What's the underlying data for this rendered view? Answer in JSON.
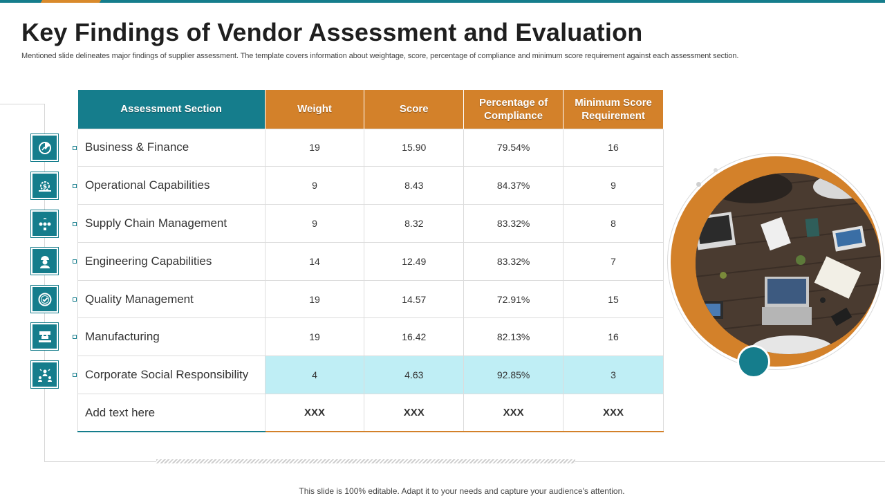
{
  "slide": {
    "title": "Key Findings of Vendor Assessment and Evaluation",
    "subtitle": "Mentioned slide delineates major findings of supplier assessment. The template covers information about weightage, score, percentage of compliance and minimum score requirement against each assessment section.",
    "footer": "This slide is 100% editable. Adapt it to your needs and capture your audience's attention."
  },
  "colors": {
    "teal": "#157d8c",
    "orange": "#d3812a",
    "highlight": "#bfeef5"
  },
  "table": {
    "headers": [
      "Assessment Section",
      "Weight",
      "Score",
      "Percentage of Compliance",
      "Minimum Score Requirement"
    ],
    "rows": [
      {
        "icon": "finance-chart-icon",
        "section": "Business & Finance",
        "weight": "19",
        "score": "15.90",
        "compliance": "79.54%",
        "minimum": "16"
      },
      {
        "icon": "gears-dollar-icon",
        "section": "Operational Capabilities",
        "weight": "9",
        "score": "8.43",
        "compliance": "84.37%",
        "minimum": "9"
      },
      {
        "icon": "supply-chain-icon",
        "section": "Supply Chain Management",
        "weight": "9",
        "score": "8.32",
        "compliance": "83.32%",
        "minimum": "8"
      },
      {
        "icon": "engineer-icon",
        "section": "Engineering Capabilities",
        "weight": "14",
        "score": "12.49",
        "compliance": "83.32%",
        "minimum": "7"
      },
      {
        "icon": "quality-badge-icon",
        "section": "Quality Management",
        "weight": "19",
        "score": "14.57",
        "compliance": "72.91%",
        "minimum": "15"
      },
      {
        "icon": "factory-icon",
        "section": "Manufacturing",
        "weight": "19",
        "score": "16.42",
        "compliance": "82.13%",
        "minimum": "16"
      },
      {
        "icon": "people-network-icon",
        "section": "Corporate Social Responsibility",
        "weight": "4",
        "score": "4.63",
        "compliance": "92.85%",
        "minimum": "3"
      },
      {
        "icon": "",
        "section": "Add text here",
        "weight": "XXX",
        "score": "XXX",
        "compliance": "XXX",
        "minimum": "XXX"
      }
    ]
  },
  "photo": {
    "icon": "meeting-table-photo"
  }
}
